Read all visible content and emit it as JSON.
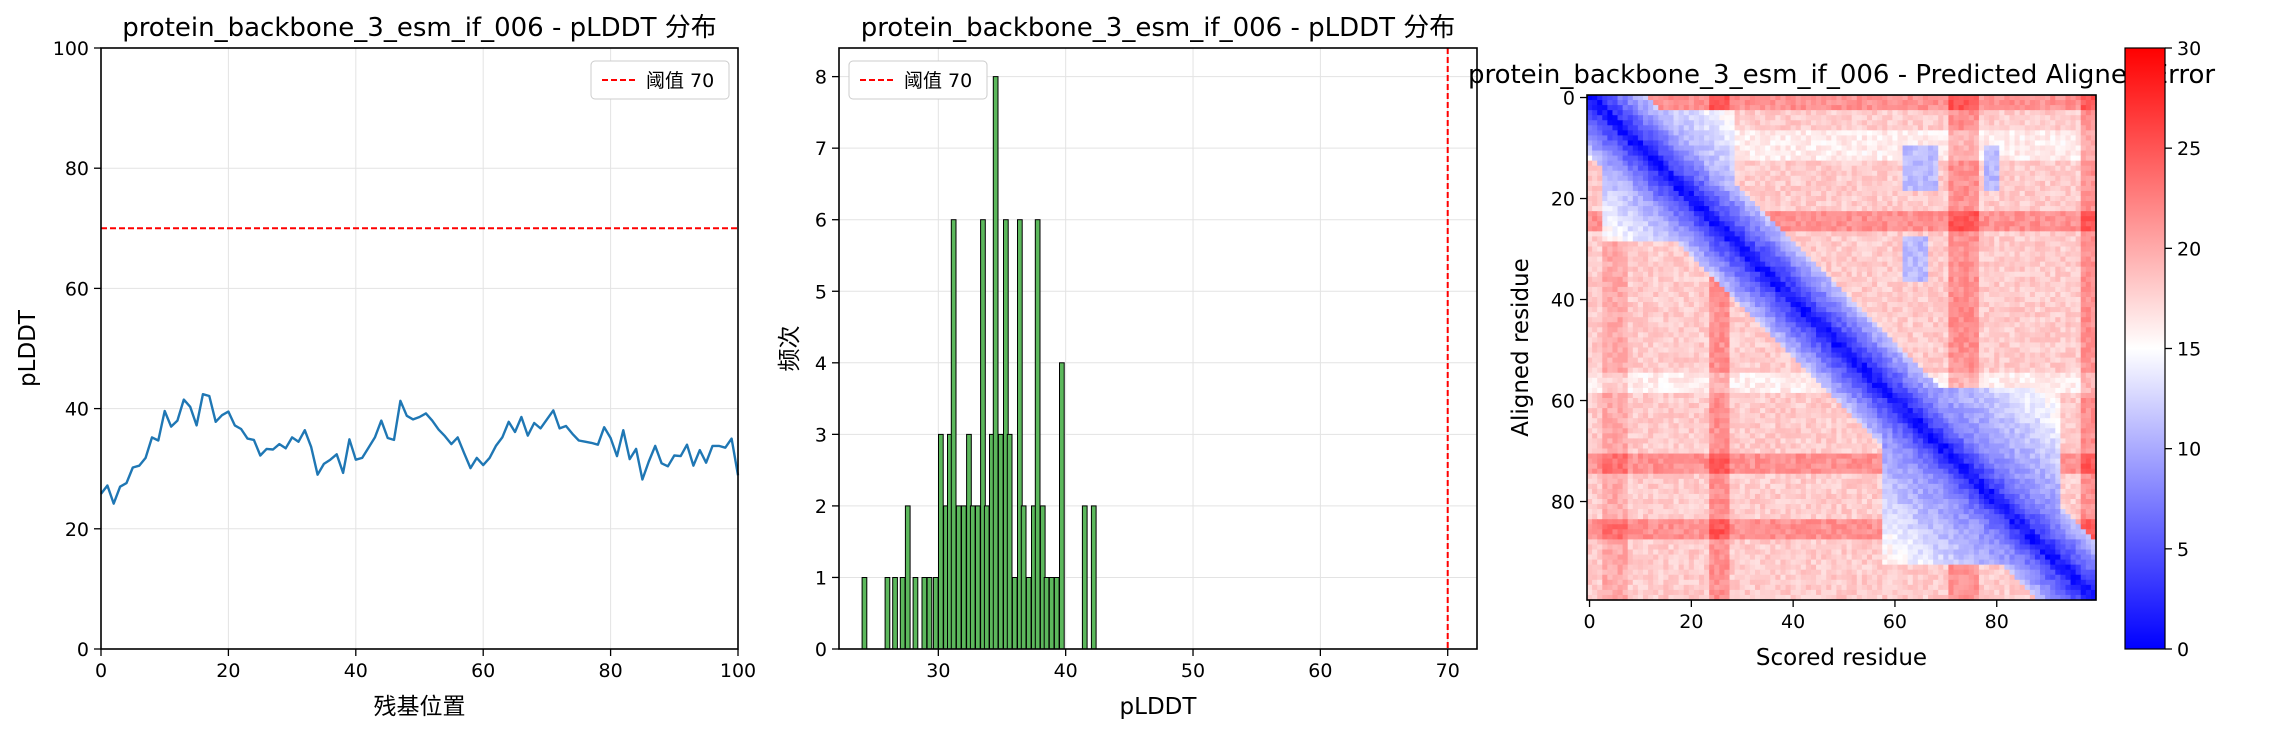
{
  "chart_data": [
    {
      "type": "line",
      "title": "protein_backbone_3_esm_if_006 - pLDDT 分布",
      "xlabel": "残基位置",
      "ylabel": "pLDDT",
      "xlim": [
        0,
        100
      ],
      "ylim": [
        0,
        100
      ],
      "xticks": [
        "0",
        "20",
        "40",
        "60",
        "80",
        "100"
      ],
      "yticks": [
        "0",
        "20",
        "40",
        "60",
        "80",
        "100"
      ],
      "grid": true,
      "legend": "upper-right",
      "threshold": {
        "label": "阈值 70",
        "value": 70,
        "color": "#ff0000"
      },
      "series": [
        {
          "color": "#1f77b4",
          "x": [
            0,
            1,
            2,
            3,
            4,
            5,
            6,
            7,
            8,
            9,
            10,
            11,
            12,
            13,
            14,
            15,
            16,
            17,
            18,
            19,
            20,
            21,
            22,
            23,
            24,
            25,
            26,
            27,
            28,
            29,
            30,
            31,
            32,
            33,
            34,
            35,
            36,
            37,
            38,
            39,
            40,
            41,
            42,
            43,
            44,
            45,
            46,
            47,
            48,
            49,
            50,
            51,
            52,
            53,
            54,
            55,
            56,
            57,
            58,
            59,
            60,
            61,
            62,
            63,
            64,
            65,
            66,
            67,
            68,
            69,
            70,
            71,
            72,
            73,
            74,
            75,
            76,
            77,
            78,
            79,
            80,
            81,
            82,
            83,
            84,
            85,
            86,
            87,
            88,
            89,
            90,
            91,
            92,
            93,
            94,
            95,
            96,
            97,
            98,
            99,
            100
          ],
          "values": [
            25.8,
            27.2,
            24.2,
            27.0,
            27.6,
            30.2,
            30.5,
            31.8,
            35.2,
            34.7,
            39.6,
            37.0,
            38.0,
            41.5,
            40.3,
            37.2,
            42.4,
            42.1,
            37.8,
            38.9,
            39.5,
            37.2,
            36.6,
            35.0,
            34.8,
            32.2,
            33.3,
            33.2,
            34.1,
            33.4,
            35.2,
            34.5,
            36.4,
            33.6,
            29.0,
            30.8,
            31.5,
            32.4,
            29.3,
            34.9,
            31.5,
            31.8,
            33.5,
            35.2,
            38.0,
            35.1,
            34.8,
            41.3,
            38.8,
            38.2,
            38.6,
            39.2,
            38.0,
            36.5,
            35.4,
            34.1,
            35.2,
            32.6,
            30.1,
            31.8,
            30.6,
            31.8,
            33.8,
            35.2,
            37.8,
            36.1,
            38.6,
            35.5,
            37.6,
            36.7,
            38.2,
            39.7,
            36.7,
            37.1,
            35.8,
            34.7,
            34.5,
            34.3,
            34.0,
            36.9,
            35.1,
            32.1,
            36.4,
            31.6,
            33.3,
            28.2,
            31.2,
            33.8,
            30.9,
            30.4,
            32.2,
            32.1,
            34.0,
            30.5,
            33.1,
            31.0,
            33.8,
            33.8,
            33.5,
            35.0,
            28.9
          ]
        }
      ]
    },
    {
      "type": "bar",
      "title": "protein_backbone_3_esm_if_006 - pLDDT 分布",
      "xlabel": "pLDDT",
      "ylabel": "频次",
      "xlim": [
        22.2,
        72.3
      ],
      "ylim": [
        0,
        8.4
      ],
      "xticks": [
        "30",
        "40",
        "50",
        "60",
        "70"
      ],
      "yticks": [
        "0",
        "1",
        "2",
        "3",
        "4",
        "5",
        "6",
        "7",
        "8"
      ],
      "grid": true,
      "legend": "upper-left",
      "threshold": {
        "label": "阈值 70",
        "value": 70,
        "color": "#ff0000"
      },
      "bar_color": "#5cb85c",
      "bin_width": 0.367,
      "bins": [
        {
          "x": 24.2,
          "count": 1
        },
        {
          "x": 26.0,
          "count": 1
        },
        {
          "x": 26.6,
          "count": 1
        },
        {
          "x": 27.2,
          "count": 1
        },
        {
          "x": 27.6,
          "count": 2
        },
        {
          "x": 28.2,
          "count": 1
        },
        {
          "x": 28.9,
          "count": 1
        },
        {
          "x": 29.3,
          "count": 1
        },
        {
          "x": 29.8,
          "count": 1
        },
        {
          "x": 30.2,
          "count": 3
        },
        {
          "x": 30.6,
          "count": 2
        },
        {
          "x": 30.9,
          "count": 3
        },
        {
          "x": 31.2,
          "count": 6
        },
        {
          "x": 31.6,
          "count": 2
        },
        {
          "x": 32.0,
          "count": 2
        },
        {
          "x": 32.4,
          "count": 3
        },
        {
          "x": 32.7,
          "count": 2
        },
        {
          "x": 33.1,
          "count": 2
        },
        {
          "x": 33.5,
          "count": 6
        },
        {
          "x": 33.8,
          "count": 2
        },
        {
          "x": 34.2,
          "count": 3
        },
        {
          "x": 34.5,
          "count": 8
        },
        {
          "x": 34.9,
          "count": 3
        },
        {
          "x": 35.3,
          "count": 6
        },
        {
          "x": 35.6,
          "count": 3
        },
        {
          "x": 36.0,
          "count": 1
        },
        {
          "x": 36.4,
          "count": 6
        },
        {
          "x": 36.7,
          "count": 2
        },
        {
          "x": 37.1,
          "count": 1
        },
        {
          "x": 37.5,
          "count": 2
        },
        {
          "x": 37.8,
          "count": 6
        },
        {
          "x": 38.2,
          "count": 2
        },
        {
          "x": 38.5,
          "count": 1
        },
        {
          "x": 38.9,
          "count": 1
        },
        {
          "x": 39.3,
          "count": 1
        },
        {
          "x": 39.7,
          "count": 4
        },
        {
          "x": 41.5,
          "count": 2
        },
        {
          "x": 42.2,
          "count": 2
        }
      ]
    },
    {
      "type": "heatmap",
      "title": "protein_backbone_3_esm_if_006 - Predicted Aligned Error",
      "xlabel": "Scored residue",
      "ylabel": "Aligned residue",
      "n_residues": 100,
      "xticks": [
        "0",
        "20",
        "40",
        "60",
        "80"
      ],
      "yticks": [
        "0",
        "20",
        "40",
        "60",
        "80"
      ],
      "colormap": "bwr",
      "vmin": 0,
      "vmax": 30,
      "colorbar_ticks": [
        "0",
        "5",
        "10",
        "15",
        "20",
        "25",
        "30"
      ],
      "grid": false
    }
  ]
}
